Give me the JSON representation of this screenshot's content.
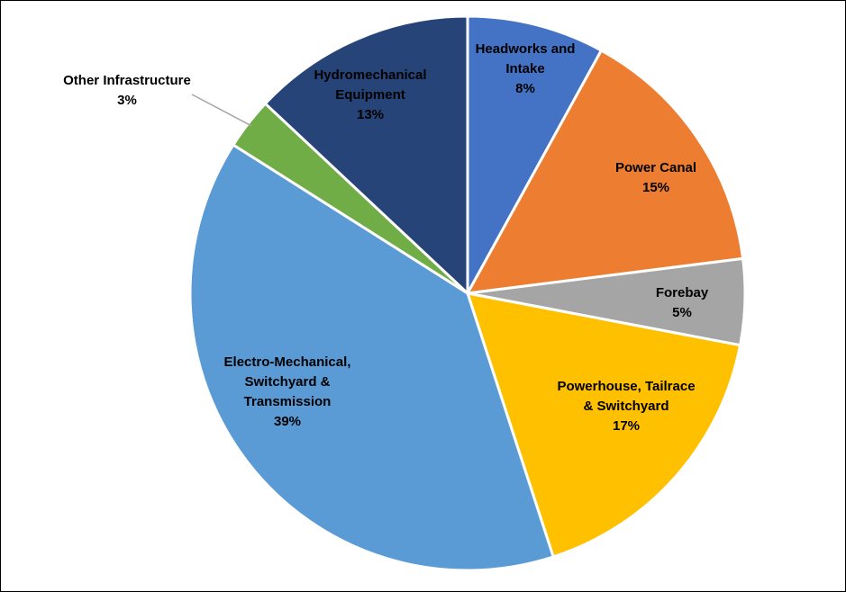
{
  "chart_data": {
    "type": "pie",
    "slices": [
      {
        "label_lines": [
          "Headworks and",
          "Intake"
        ],
        "value": 8,
        "percent_label": "8%",
        "color": "#4472C4"
      },
      {
        "label_lines": [
          "Power Canal"
        ],
        "value": 15,
        "percent_label": "15%",
        "color": "#ED7D31"
      },
      {
        "label_lines": [
          "Forebay"
        ],
        "value": 5,
        "percent_label": "5%",
        "color": "#A5A5A5"
      },
      {
        "label_lines": [
          "Powerhouse, Tailrace",
          "& Switchyard"
        ],
        "value": 17,
        "percent_label": "17%",
        "color": "#FFC000"
      },
      {
        "label_lines": [
          "Electro-Mechanical,",
          "Switchyard &",
          "Transmission"
        ],
        "value": 39,
        "percent_label": "39%",
        "color": "#5B9BD5"
      },
      {
        "label_lines": [
          "Other Infrastructure"
        ],
        "value": 3,
        "percent_label": "3%",
        "color": "#70AD47"
      },
      {
        "label_lines": [
          "Hydromechanical",
          "Equipment"
        ],
        "value": 13,
        "percent_label": "13%",
        "color": "#264478"
      }
    ],
    "start": "top (12 o'clock)",
    "direction": "clockwise",
    "legend": "none"
  }
}
